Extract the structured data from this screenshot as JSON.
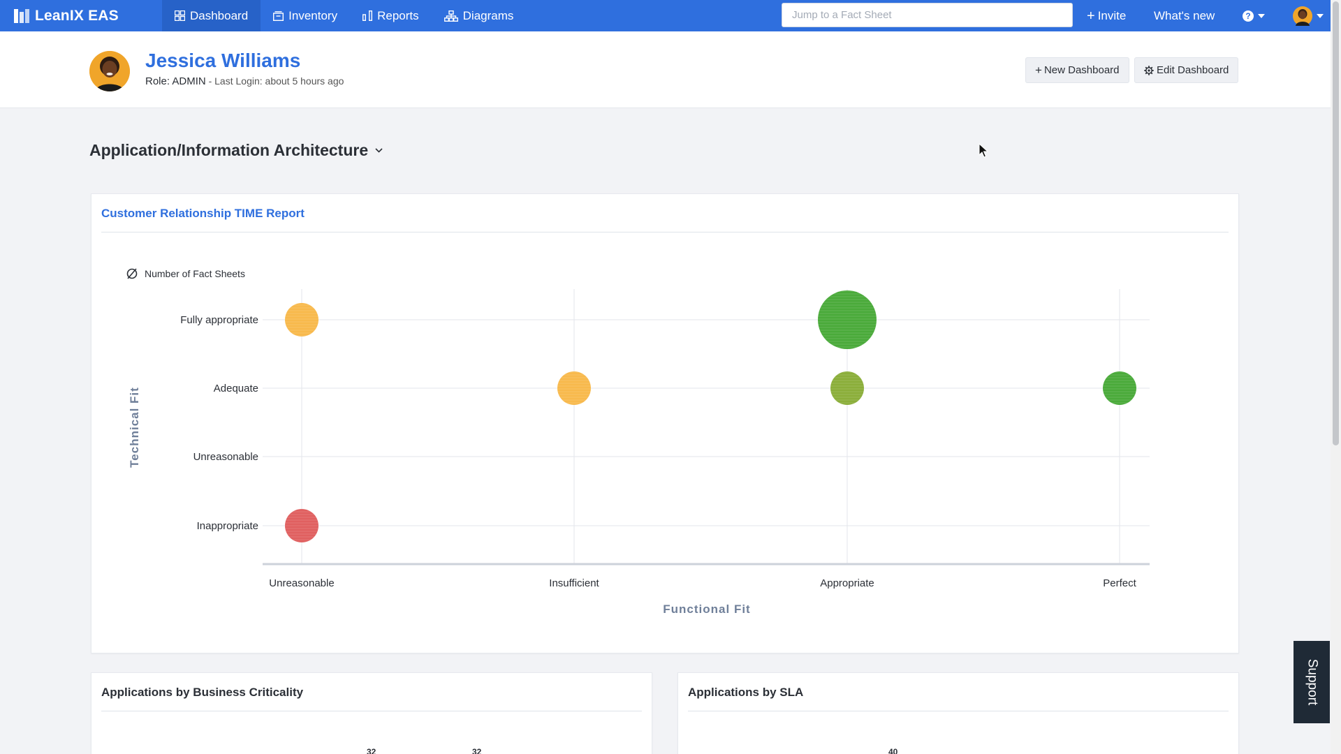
{
  "nav": {
    "brand": "LeanIX EAS",
    "items": [
      {
        "label": "Dashboard",
        "icon": "dashboard-grid-icon",
        "active": true
      },
      {
        "label": "Inventory",
        "icon": "inventory-icon",
        "active": false
      },
      {
        "label": "Reports",
        "icon": "bar-chart-icon",
        "active": false
      },
      {
        "label": "Diagrams",
        "icon": "diagram-icon",
        "active": false
      }
    ],
    "search_placeholder": "Jump to a Fact Sheet",
    "invite_label": "Invite",
    "whats_new_label": "What's new",
    "help_icon": "help-circle-icon",
    "accent": "#2f6fde"
  },
  "profile": {
    "name": "Jessica Williams",
    "role": "Role: ADMIN",
    "last_login": " - Last Login: about 5 hours ago",
    "new_dashboard_label": "New Dashboard",
    "edit_dashboard_label": "Edit Dashboard"
  },
  "dashboard": {
    "title": "Application/Information Architecture"
  },
  "time_report": {
    "title": "Customer Relationship TIME Report",
    "legend_label": "Number of Fact Sheets"
  },
  "chart_data": {
    "type": "scatter",
    "title": "Customer Relationship TIME Report",
    "xlabel": "Functional Fit",
    "ylabel": "Technical Fit",
    "x_categories": [
      "Unreasonable",
      "Insufficient",
      "Appropriate",
      "Perfect"
    ],
    "y_categories": [
      "Fully appropriate",
      "Adequate",
      "Unreasonable",
      "Inappropriate"
    ],
    "size_legend": "Number of Fact Sheets",
    "points": [
      {
        "x": "Unreasonable",
        "y": "Fully appropriate",
        "size": 1,
        "color": "#f8b94c"
      },
      {
        "x": "Appropriate",
        "y": "Fully appropriate",
        "size": 3,
        "color": "#4aaa3a"
      },
      {
        "x": "Insufficient",
        "y": "Adequate",
        "size": 1,
        "color": "#f8b94c"
      },
      {
        "x": "Appropriate",
        "y": "Adequate",
        "size": 1,
        "color": "#8bae3a"
      },
      {
        "x": "Perfect",
        "y": "Adequate",
        "size": 1,
        "color": "#4aaa3a"
      },
      {
        "x": "Unreasonable",
        "y": "Inappropriate",
        "size": 1,
        "color": "#e06060"
      }
    ]
  },
  "cards": {
    "business_criticality": {
      "title": "Applications by Business Criticality",
      "labels": [
        "32",
        "32"
      ]
    },
    "sla": {
      "title": "Applications by SLA",
      "labels": [
        "40"
      ]
    }
  },
  "support_label": "Support"
}
